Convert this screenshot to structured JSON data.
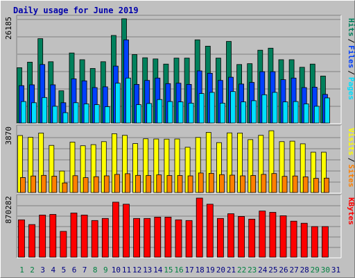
{
  "title": "Daily usage for June 2019",
  "colors": {
    "background": "#c0c0c0",
    "panel": "#c0c0c0",
    "hits": "#00805c",
    "files": "#0040ff",
    "pages": "#00e0ff",
    "visits": "#ffff00",
    "sites": "#ff8000",
    "kbytes": "#ff0000",
    "weekend_label": "#008040",
    "weekday_label": "#000080"
  },
  "chart_data": [
    {
      "type": "bar",
      "panel": "hits-files-pages",
      "max_label": "26185",
      "legend": [
        "Pages",
        "/",
        "Files",
        "/",
        "Hits"
      ],
      "categories": [
        "1",
        "2",
        "3",
        "4",
        "5",
        "6",
        "7",
        "8",
        "9",
        "10",
        "11",
        "12",
        "13",
        "14",
        "15",
        "16",
        "17",
        "18",
        "19",
        "20",
        "21",
        "22",
        "23",
        "24",
        "25",
        "26",
        "27",
        "28",
        "29",
        "30",
        "31"
      ],
      "ylim": [
        0,
        26185
      ],
      "series": [
        {
          "name": "Hits",
          "values": [
            13900,
            15300,
            21200,
            15400,
            8100,
            17600,
            15900,
            13700,
            15400,
            22000,
            26185,
            17200,
            16400,
            16100,
            14800,
            16300,
            16300,
            20900,
            19300,
            16300,
            20500,
            14700,
            14900,
            18300,
            18800,
            15900,
            15900,
            14000,
            14800,
            11800,
            0
          ]
        },
        {
          "name": "Files",
          "values": [
            9400,
            9600,
            14700,
            9600,
            5100,
            11100,
            10600,
            8900,
            9100,
            14300,
            20900,
            9700,
            10700,
            11300,
            9900,
            10000,
            9700,
            13100,
            12500,
            10700,
            11500,
            9800,
            10200,
            12900,
            12900,
            10900,
            11300,
            8900,
            9000,
            7200,
            0
          ]
        },
        {
          "name": "Pages",
          "values": [
            5400,
            5100,
            6400,
            4200,
            2600,
            5100,
            4800,
            4600,
            4100,
            10000,
            11300,
            4600,
            4900,
            5900,
            5400,
            5300,
            5000,
            7400,
            7700,
            5000,
            7900,
            5300,
            5600,
            7100,
            7700,
            5300,
            5400,
            4800,
            4200,
            6300,
            0
          ]
        }
      ]
    },
    {
      "type": "bar",
      "panel": "visits-sites",
      "max_label": "3870",
      "legend": [
        "Sites",
        "/",
        "Visits"
      ],
      "categories": [
        "1",
        "2",
        "3",
        "4",
        "5",
        "6",
        "7",
        "8",
        "9",
        "10",
        "11",
        "12",
        "13",
        "14",
        "15",
        "16",
        "17",
        "18",
        "19",
        "20",
        "21",
        "22",
        "23",
        "24",
        "25",
        "26",
        "27",
        "28",
        "29",
        "30",
        "31"
      ],
      "ylim": [
        0,
        3870
      ],
      "series": [
        {
          "name": "Visits",
          "values": [
            3450,
            3340,
            3600,
            2850,
            1300,
            3050,
            2830,
            2900,
            3080,
            3560,
            3460,
            2960,
            3250,
            3240,
            3230,
            3240,
            2740,
            3330,
            3640,
            3020,
            3610,
            3600,
            3200,
            3460,
            3740,
            3080,
            3110,
            2950,
            2440,
            2440,
            0
          ]
        },
        {
          "name": "Sites",
          "values": [
            910,
            1000,
            1040,
            990,
            580,
            1020,
            900,
            960,
            1010,
            1100,
            1140,
            1040,
            1030,
            1070,
            1030,
            1030,
            1010,
            1180,
            1160,
            1080,
            1050,
            1010,
            1030,
            1100,
            1150,
            980,
            1000,
            950,
            860,
            870,
            0
          ]
        }
      ]
    },
    {
      "type": "bar",
      "panel": "kbytes",
      "max_label": "870282",
      "legend": [
        "KBytes"
      ],
      "categories": [
        "1",
        "2",
        "3",
        "4",
        "5",
        "6",
        "7",
        "8",
        "9",
        "10",
        "11",
        "12",
        "13",
        "14",
        "15",
        "16",
        "17",
        "18",
        "19",
        "20",
        "21",
        "22",
        "23",
        "24",
        "25",
        "26",
        "27",
        "28",
        "29",
        "30",
        "31"
      ],
      "ylim": [
        0,
        870282
      ],
      "series": [
        {
          "name": "KBytes",
          "values": [
            550000,
            480000,
            620000,
            630000,
            380000,
            650000,
            620000,
            540000,
            570000,
            810000,
            780000,
            570000,
            570000,
            590000,
            590000,
            550000,
            540000,
            870282,
            780000,
            570000,
            640000,
            600000,
            560000,
            680000,
            660000,
            610000,
            530000,
            500000,
            450000,
            450000,
            0
          ]
        }
      ]
    }
  ],
  "x_labels": [
    {
      "text": "1",
      "weekend": true
    },
    {
      "text": "2",
      "weekend": true
    },
    {
      "text": "3",
      "weekend": false
    },
    {
      "text": "4",
      "weekend": false
    },
    {
      "text": "5",
      "weekend": false
    },
    {
      "text": "6",
      "weekend": false
    },
    {
      "text": "7",
      "weekend": false
    },
    {
      "text": "8",
      "weekend": true
    },
    {
      "text": "9",
      "weekend": true
    },
    {
      "text": "10",
      "weekend": false
    },
    {
      "text": "11",
      "weekend": false
    },
    {
      "text": "12",
      "weekend": false
    },
    {
      "text": "13",
      "weekend": false
    },
    {
      "text": "14",
      "weekend": false
    },
    {
      "text": "15",
      "weekend": true
    },
    {
      "text": "16",
      "weekend": true
    },
    {
      "text": "17",
      "weekend": false
    },
    {
      "text": "18",
      "weekend": false
    },
    {
      "text": "19",
      "weekend": false
    },
    {
      "text": "20",
      "weekend": false
    },
    {
      "text": "21",
      "weekend": false
    },
    {
      "text": "22",
      "weekend": true
    },
    {
      "text": "23",
      "weekend": true
    },
    {
      "text": "24",
      "weekend": false
    },
    {
      "text": "25",
      "weekend": false
    },
    {
      "text": "26",
      "weekend": false
    },
    {
      "text": "27",
      "weekend": false
    },
    {
      "text": "28",
      "weekend": false
    },
    {
      "text": "29",
      "weekend": true
    },
    {
      "text": "30",
      "weekend": true
    },
    {
      "text": "31",
      "weekend": false
    }
  ]
}
